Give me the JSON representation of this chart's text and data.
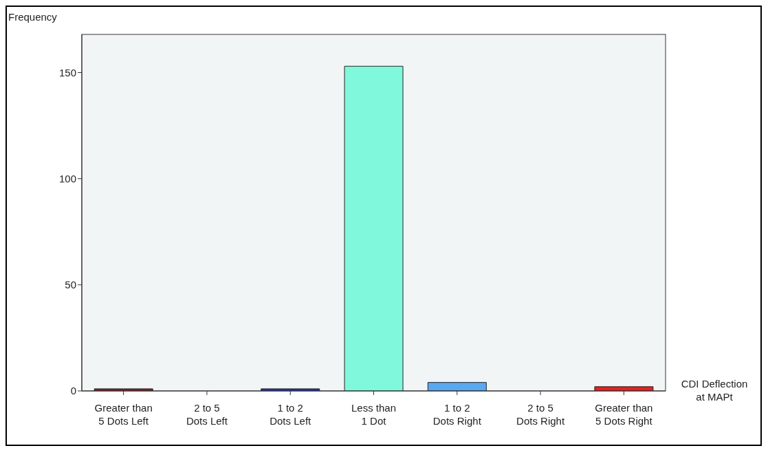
{
  "chart_data": {
    "type": "bar",
    "xlabel": "CDI Deflection\nat MAPt",
    "ylabel": "Frequency",
    "categories": [
      "Greater than\n5 Dots Left",
      "2 to 5\nDots Left",
      "1 to 2\nDots Left",
      "Less than\n1 Dot",
      "1 to 2\nDots Right",
      "2 to 5\nDots Right",
      "Greater than\n5 Dots Right"
    ],
    "values": [
      1,
      0,
      1,
      153,
      4,
      0,
      2
    ],
    "colors": [
      "#8b2020",
      "#3030a0",
      "#2030c8",
      "#80f8dc",
      "#5aa8f0",
      "#4040c0",
      "#e82020"
    ],
    "ylim": [
      0,
      168
    ],
    "yticks": [
      0,
      50,
      100,
      150
    ],
    "grid": false
  }
}
